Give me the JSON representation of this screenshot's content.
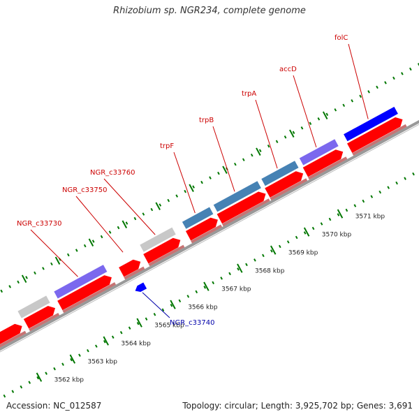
{
  "title": "Rhizobium sp. NGR234, complete genome",
  "footer": {
    "accession": "Accession: NC_012587",
    "summary": "Topology: circular; Length: 3,925,702 bp; Genes: 3,691"
  },
  "colors": {
    "background": "#ffffff",
    "backbone": "#999999",
    "cds_forward": "#ff0000",
    "cds_reverse": "#0000ff",
    "gene_blue": "#4682b4",
    "gene_purple": "#7b68ee",
    "gene_grey": "#c8c8c8",
    "label_forward": "#cc0000",
    "label_reverse": "#0000aa",
    "tick": "#007700"
  },
  "scale_ticks": [
    {
      "label": "3562 kbp",
      "kbp": 3562
    },
    {
      "label": "3563 kbp",
      "kbp": 3563
    },
    {
      "label": "3564 kbp",
      "kbp": 3564
    },
    {
      "label": "3565 kbp",
      "kbp": 3565
    },
    {
      "label": "3566 kbp",
      "kbp": 3566
    },
    {
      "label": "3567 kbp",
      "kbp": 3567
    },
    {
      "label": "3568 kbp",
      "kbp": 3568
    },
    {
      "label": "3569 kbp",
      "kbp": 3569
    },
    {
      "label": "3570 kbp",
      "kbp": 3570
    },
    {
      "label": "3571 kbp",
      "kbp": 3571
    }
  ],
  "genes": [
    {
      "name": "NGR_c33730",
      "strand": "forward",
      "gene_color": "gene_purple"
    },
    {
      "name": "NGR_c33740",
      "strand": "reverse",
      "gene_color": null
    },
    {
      "name": "NGR_c33750",
      "strand": "forward",
      "gene_color": null
    },
    {
      "name": "NGR_c33760",
      "strand": "forward",
      "gene_color": "gene_grey"
    },
    {
      "name": "trpF",
      "strand": "forward",
      "gene_color": "gene_blue"
    },
    {
      "name": "trpB",
      "strand": "forward",
      "gene_color": "gene_blue"
    },
    {
      "name": "trpA",
      "strand": "forward",
      "gene_color": "gene_blue"
    },
    {
      "name": "accD",
      "strand": "forward",
      "gene_color": "gene_purple"
    },
    {
      "name": "folC",
      "strand": "forward",
      "gene_color": "cds_reverse"
    }
  ]
}
